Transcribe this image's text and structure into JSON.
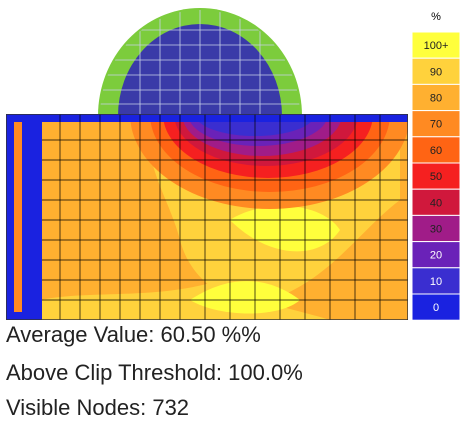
{
  "legend": {
    "title": "%",
    "items": [
      {
        "label": "100+",
        "color": "#ffff3c"
      },
      {
        "label": "90",
        "color": "#ffd23c"
      },
      {
        "label": "80",
        "color": "#ffb030"
      },
      {
        "label": "70",
        "color": "#ff8a22"
      },
      {
        "label": "60",
        "color": "#ff6414"
      },
      {
        "label": "50",
        "color": "#f52020"
      },
      {
        "label": "40",
        "color": "#d0183c"
      },
      {
        "label": "30",
        "color": "#a01c88"
      },
      {
        "label": "20",
        "color": "#6a22b8"
      },
      {
        "label": "10",
        "color": "#3a2ed0"
      },
      {
        "label": "0",
        "color": "#1a22e0"
      }
    ]
  },
  "stats": [
    "Average Value: 60.50 %%",
    "Above Clip Threshold: 100.0%",
    "Visible Nodes: 732"
  ]
}
